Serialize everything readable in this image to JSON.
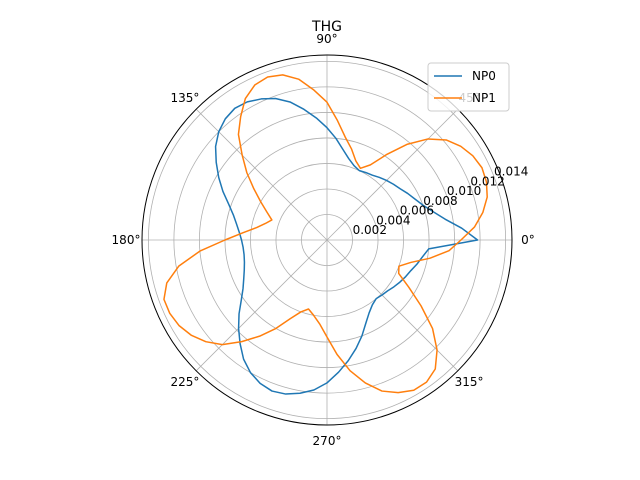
{
  "chart_data": {
    "type": "line",
    "projection": "polar",
    "title": "THG",
    "angle_ticks": [
      "0°",
      "45°",
      "90°",
      "135°",
      "180°",
      "225°",
      "270°",
      "315°"
    ],
    "radial_ticks": [
      "0.002",
      "0.004",
      "0.006",
      "0.008",
      "0.010",
      "0.012",
      "0.014"
    ],
    "rlim": [
      0,
      0.0145
    ],
    "grid": true,
    "legend_position": "top-right",
    "angle_step_deg": 5,
    "series": [
      {
        "name": "NP0",
        "color": "#1f77b4",
        "values": [
          0.0118,
          0.0106,
          0.0094,
          0.0086,
          0.008,
          0.0076,
          0.0073,
          0.007,
          0.0068,
          0.0066,
          0.0064,
          0.0062,
          0.0061,
          0.006,
          0.0062,
          0.0066,
          0.0072,
          0.008,
          0.0088,
          0.0096,
          0.0104,
          0.0112,
          0.0118,
          0.0122,
          0.0125,
          0.0126,
          0.0124,
          0.012,
          0.0114,
          0.0106,
          0.0098,
          0.009,
          0.0082,
          0.0076,
          0.0072,
          0.0069,
          0.0067,
          0.0066,
          0.0066,
          0.0067,
          0.0069,
          0.0072,
          0.0076,
          0.0082,
          0.009,
          0.0098,
          0.0106,
          0.0114,
          0.012,
          0.0124,
          0.0126,
          0.0125,
          0.0122,
          0.0118,
          0.0112,
          0.0104,
          0.0096,
          0.0088,
          0.008,
          0.0072,
          0.0066,
          0.0062,
          0.006,
          0.0061,
          0.0062,
          0.0064,
          0.0066,
          0.0068,
          0.007,
          0.0073,
          0.0076,
          0.008
        ]
      },
      {
        "name": "NP1",
        "color": "#ff7f0e",
        "values": [
          0.0105,
          0.0116,
          0.0124,
          0.013,
          0.0133,
          0.0134,
          0.0132,
          0.0128,
          0.0122,
          0.0112,
          0.0098,
          0.0082,
          0.0068,
          0.0062,
          0.0066,
          0.0074,
          0.0082,
          0.0094,
          0.0108,
          0.0118,
          0.0128,
          0.0134,
          0.0136,
          0.0134,
          0.0128,
          0.0118,
          0.0108,
          0.0094,
          0.0082,
          0.007,
          0.006,
          0.0052,
          0.0046,
          0.005,
          0.0056,
          0.0066,
          0.008,
          0.01,
          0.0118,
          0.013,
          0.0136,
          0.0136,
          0.0134,
          0.013,
          0.0124,
          0.0116,
          0.0104,
          0.0092,
          0.008,
          0.0068,
          0.006,
          0.0056,
          0.006,
          0.0066,
          0.0076,
          0.009,
          0.0104,
          0.0116,
          0.0126,
          0.0132,
          0.0136,
          0.0136,
          0.0132,
          0.0122,
          0.0108,
          0.009,
          0.0074,
          0.0062,
          0.006,
          0.0068,
          0.0082,
          0.0096
        ]
      }
    ]
  }
}
